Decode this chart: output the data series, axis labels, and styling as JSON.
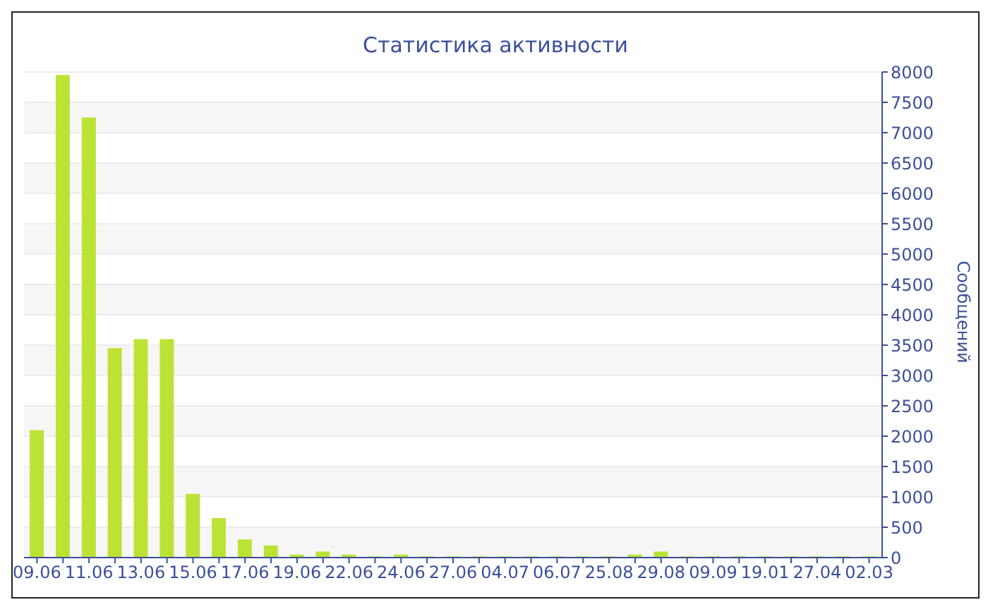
{
  "chart_data": {
    "type": "bar",
    "title": "Статистика активности",
    "ylabel": "Сообщений",
    "categories": [
      "09.06",
      null,
      "11.06",
      null,
      "13.06",
      null,
      "15.06",
      null,
      "17.06",
      null,
      "19.06",
      null,
      "22.06",
      null,
      "24.06",
      null,
      "27.06",
      null,
      "04.07",
      null,
      "06.07",
      null,
      "25.08",
      null,
      "29.08",
      null,
      "09.09",
      null,
      "19.01",
      null,
      "27.04",
      null,
      "02.03"
    ],
    "values": [
      2100,
      7950,
      7250,
      3450,
      3600,
      3600,
      1050,
      650,
      300,
      200,
      50,
      100,
      50,
      20,
      50,
      20,
      20,
      20,
      20,
      20,
      20,
      20,
      20,
      50,
      100,
      20,
      20,
      20,
      20,
      20,
      20,
      20,
      20
    ],
    "color": "#bde236",
    "ylim": [
      0,
      8000
    ],
    "yticks": [
      0,
      500,
      1000,
      1500,
      2000,
      2500,
      3000,
      3500,
      4000,
      4500,
      5000,
      5500,
      6000,
      6500,
      7000,
      7500,
      8000
    ],
    "grid": "y"
  }
}
